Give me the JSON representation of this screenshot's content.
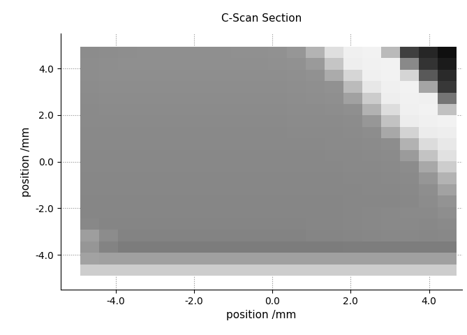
{
  "chart_data": {
    "type": "heatmap",
    "title": "C-Scan Section",
    "x_label": "position /mm",
    "y_label": "position /mm",
    "xlim": [
      -5.4,
      4.85
    ],
    "ylim": [
      -5.5,
      5.5
    ],
    "xticks": [
      {
        "value": -4,
        "label": "-4.0"
      },
      {
        "value": -2,
        "label": "-2.0"
      },
      {
        "value": 0,
        "label": "0.0"
      },
      {
        "value": 2,
        "label": "2.0"
      },
      {
        "value": 4,
        "label": "4.0"
      }
    ],
    "yticks": [
      {
        "value": -4,
        "label": "-4.0"
      },
      {
        "value": -2,
        "label": "-2.0"
      },
      {
        "value": 0,
        "label": "0.0"
      },
      {
        "value": 2,
        "label": "2.0"
      },
      {
        "value": 4,
        "label": "4.0"
      }
    ],
    "grid": true,
    "color": "gray",
    "x_extent": [
      -4.9,
      4.7
    ],
    "y_extent": [
      -4.9,
      4.9
    ],
    "value_range": [
      0,
      255
    ],
    "cells": [
      [
        140,
        141,
        142,
        143,
        143,
        143,
        143,
        143,
        144,
        144,
        145,
        150,
        180,
        223,
        240,
        242,
        186,
        63,
        38,
        15
      ],
      [
        141,
        142,
        143,
        143,
        143,
        143,
        143,
        143,
        143,
        143,
        144,
        145,
        154,
        197,
        238,
        241,
        242,
        137,
        51,
        27
      ],
      [
        141,
        142,
        142,
        142,
        142,
        142,
        142,
        142,
        142,
        142,
        142,
        143,
        145,
        171,
        214,
        240,
        242,
        213,
        89,
        42
      ],
      [
        140,
        141,
        141,
        141,
        141,
        141,
        141,
        141,
        141,
        141,
        141,
        142,
        143,
        145,
        187,
        231,
        240,
        242,
        165,
        57
      ],
      [
        139,
        140,
        140,
        140,
        140,
        140,
        140,
        140,
        140,
        140,
        140,
        141,
        142,
        143,
        161,
        204,
        238,
        241,
        240,
        117
      ],
      [
        138,
        139,
        139,
        139,
        139,
        139,
        139,
        139,
        139,
        139,
        139,
        140,
        140,
        141,
        143,
        178,
        221,
        240,
        242,
        193
      ],
      [
        138,
        138,
        138,
        138,
        138,
        138,
        138,
        138,
        138,
        138,
        138,
        139,
        139,
        139,
        140,
        151,
        194,
        237,
        240,
        242
      ],
      [
        137,
        137,
        137,
        137,
        137,
        137,
        137,
        137,
        137,
        137,
        137,
        138,
        138,
        138,
        139,
        141,
        168,
        211,
        236,
        238
      ],
      [
        137,
        137,
        137,
        137,
        137,
        137,
        137,
        137,
        137,
        137,
        137,
        137,
        137,
        138,
        138,
        139,
        141,
        178,
        220,
        232
      ],
      [
        136,
        136,
        136,
        136,
        136,
        136,
        136,
        136,
        136,
        136,
        136,
        136,
        136,
        137,
        137,
        138,
        139,
        155,
        195,
        225
      ],
      [
        136,
        136,
        136,
        136,
        136,
        136,
        136,
        136,
        136,
        136,
        136,
        136,
        136,
        136,
        137,
        137,
        138,
        140,
        168,
        205
      ],
      [
        135,
        135,
        135,
        135,
        135,
        135,
        135,
        135,
        135,
        135,
        135,
        135,
        135,
        135,
        136,
        136,
        137,
        138,
        150,
        180
      ],
      [
        135,
        135,
        135,
        135,
        135,
        135,
        135,
        135,
        135,
        135,
        135,
        135,
        135,
        135,
        135,
        136,
        136,
        137,
        142,
        162
      ],
      [
        134,
        134,
        134,
        134,
        134,
        134,
        134,
        134,
        134,
        134,
        134,
        134,
        134,
        134,
        135,
        135,
        135,
        136,
        140,
        148
      ],
      [
        134,
        134,
        134,
        134,
        134,
        134,
        134,
        134,
        134,
        134,
        134,
        134,
        134,
        134,
        135,
        136,
        137,
        138,
        138,
        142
      ],
      [
        136,
        133,
        133,
        133,
        133,
        133,
        133,
        133,
        133,
        133,
        133,
        133,
        134,
        134,
        135,
        136,
        137,
        137,
        136,
        138
      ],
      [
        158,
        140,
        132,
        132,
        132,
        132,
        132,
        132,
        132,
        132,
        132,
        132,
        133,
        133,
        134,
        135,
        136,
        136,
        135,
        136
      ],
      [
        150,
        132,
        124,
        124,
        124,
        124,
        124,
        124,
        124,
        124,
        124,
        124,
        124,
        124,
        125,
        125,
        125,
        125,
        125,
        125
      ],
      [
        162,
        160,
        160,
        160,
        160,
        160,
        160,
        160,
        160,
        160,
        160,
        160,
        160,
        160,
        160,
        160,
        160,
        160,
        160,
        160
      ],
      [
        205,
        205,
        205,
        205,
        205,
        205,
        205,
        205,
        205,
        205,
        205,
        205,
        205,
        205,
        205,
        205,
        205,
        205,
        205,
        205
      ]
    ]
  }
}
